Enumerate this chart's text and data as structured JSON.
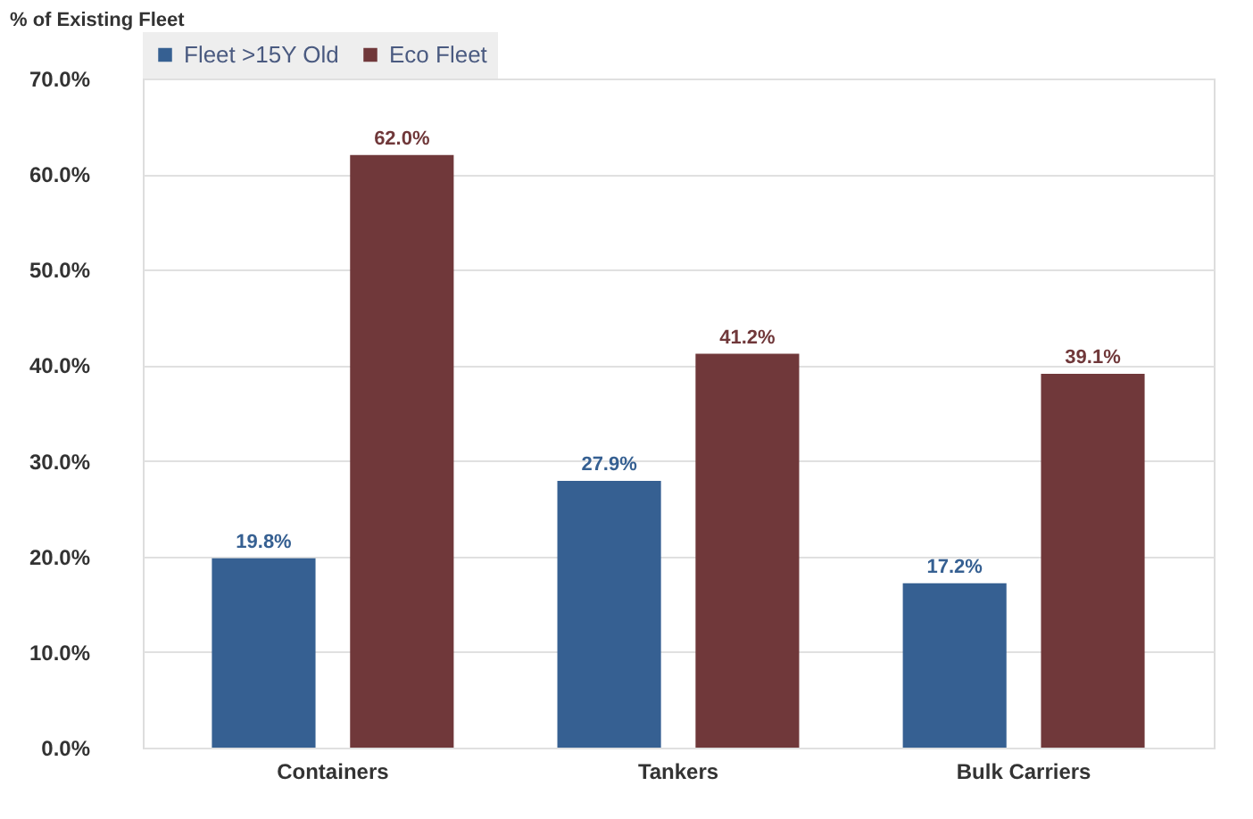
{
  "chart_data": {
    "type": "bar",
    "ylabel": "% of Existing Fleet",
    "categories": [
      "Containers",
      "Tankers",
      "Bulk Carriers"
    ],
    "series": [
      {
        "name": "Fleet >15Y Old",
        "color": "#366092",
        "values": [
          19.8,
          27.9,
          17.2
        ],
        "value_labels": [
          "19.8%",
          "27.9%",
          "17.2%"
        ]
      },
      {
        "name": "Eco Fleet",
        "color": "#70383a",
        "values": [
          62.0,
          41.2,
          39.1
        ],
        "value_labels": [
          "62.0%",
          "41.2%",
          "39.1%"
        ]
      }
    ],
    "ylim": [
      0,
      70
    ],
    "yticks": [
      {
        "value": 0,
        "label": "0.0%"
      },
      {
        "value": 10,
        "label": "10.0%"
      },
      {
        "value": 20,
        "label": "20.0%"
      },
      {
        "value": 30,
        "label": "30.0%"
      },
      {
        "value": 40,
        "label": "40.0%"
      },
      {
        "value": 50,
        "label": "50.0%"
      },
      {
        "value": 60,
        "label": "60.0%"
      },
      {
        "value": 70,
        "label": "70.0%"
      }
    ],
    "grid": "y",
    "legend": "top"
  }
}
